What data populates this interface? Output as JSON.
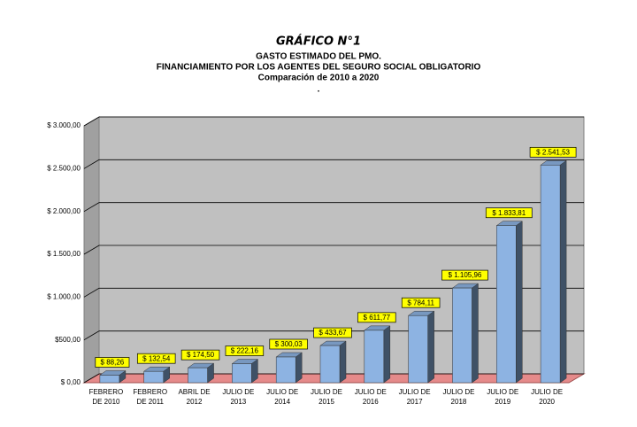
{
  "chart_data": {
    "type": "bar3d",
    "title": "GRÁFICO N°1",
    "subtitle": [
      "GASTO ESTIMADO DEL PMO.",
      "FINANCIAMIENTO POR LOS AGENTES DEL SEGURO SOCIAL OBLIGATORIO",
      "Comparación de 2010 a 2020",
      "."
    ],
    "categories": [
      [
        "FEBRERO",
        "DE 2010"
      ],
      [
        "FEBRERO",
        "DE 2011"
      ],
      [
        "ABRIL DE",
        "2012"
      ],
      [
        "JULIO DE",
        "2013"
      ],
      [
        "JULIO DE",
        "2014"
      ],
      [
        "JULIO DE",
        "2015"
      ],
      [
        "JULIO DE",
        "2016"
      ],
      [
        "JULIO DE",
        "2017"
      ],
      [
        "JULIO DE",
        "2018"
      ],
      [
        "JULIO DE",
        "2019"
      ],
      [
        "JULIO DE",
        "2020"
      ]
    ],
    "values": [
      88.26,
      132.54,
      174.5,
      222.16,
      300.03,
      433.67,
      611.77,
      784.11,
      1105.96,
      1833.81,
      2541.53
    ],
    "value_labels": [
      "$ 88,26",
      "$ 132,54",
      "$ 174,50",
      "$ 222,16",
      "$ 300,03",
      "$ 433,67",
      "$ 611,77",
      "$ 784,11",
      "$ 1.105,96",
      "$ 1.833,81",
      "$ 2.541,53"
    ],
    "color": "#8db3e2",
    "ylim": [
      0,
      3000
    ],
    "yticks": [
      {
        "value": 0,
        "label": "$ 0,00"
      },
      {
        "value": 500,
        "label": "$500,00"
      },
      {
        "value": 1000,
        "label": "$ 1.000,00"
      },
      {
        "value": 1500,
        "label": "$ 1.500,00"
      },
      {
        "value": 2000,
        "label": "$ 2.000,00"
      },
      {
        "value": 2500,
        "label": "$ 2.500,00"
      },
      {
        "value": 3000,
        "label": "$ 3.000,00"
      }
    ],
    "grid": true
  }
}
